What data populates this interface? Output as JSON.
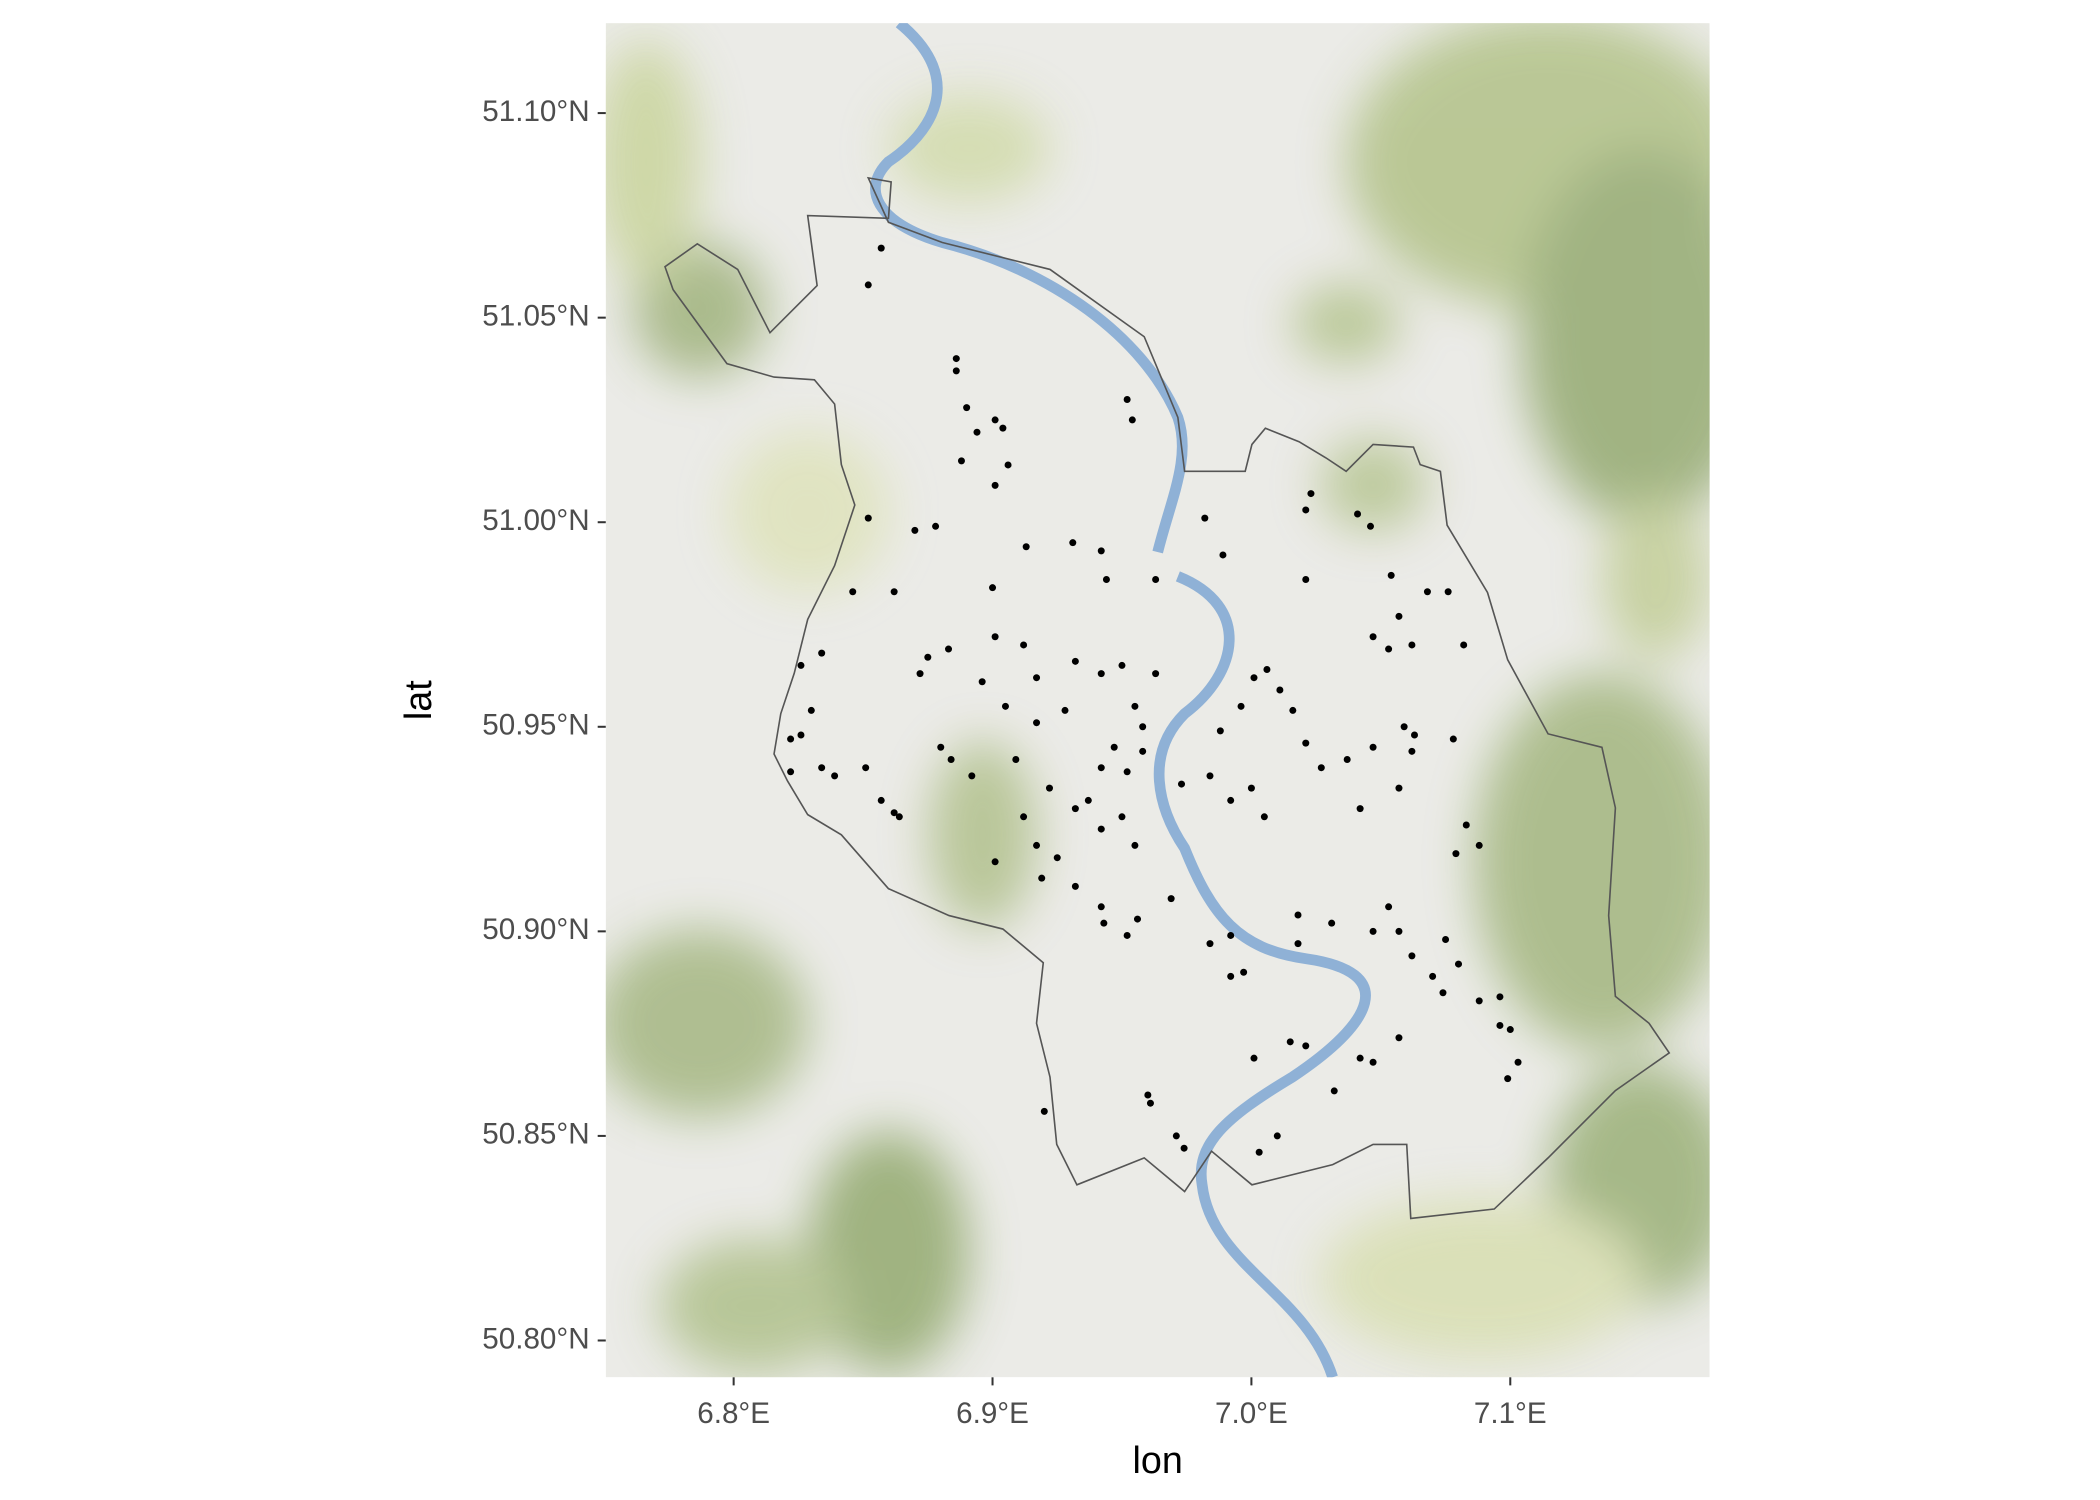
{
  "chart_data": {
    "type": "scatter",
    "x_label": "lon",
    "y_label": "lat",
    "color": "#000000",
    "xlim": [
      6.7506,
      7.177
    ],
    "ylim": [
      50.791,
      51.122
    ],
    "xticks": [
      {
        "value": 6.8,
        "label": "6.8°E"
      },
      {
        "value": 6.9,
        "label": "6.9°E"
      },
      {
        "value": 7.0,
        "label": "7.0°E"
      },
      {
        "value": 7.1,
        "label": "7.1°E"
      }
    ],
    "yticks": [
      {
        "value": 50.8,
        "label": "50.80°N"
      },
      {
        "value": 50.85,
        "label": "50.85°N"
      },
      {
        "value": 50.9,
        "label": "50.90°N"
      },
      {
        "value": 50.95,
        "label": "50.95°N"
      },
      {
        "value": 51.0,
        "label": "51.00°N"
      },
      {
        "value": 51.05,
        "label": "51.05°N"
      },
      {
        "value": 51.1,
        "label": "51.10°N"
      }
    ],
    "x": [
      6.857,
      6.852,
      6.886,
      6.886,
      6.89,
      6.901,
      6.894,
      6.904,
      6.888,
      6.906,
      6.901,
      6.952,
      6.954,
      6.852,
      6.87,
      6.878,
      6.982,
      6.989,
      7.023,
      7.021,
      7.041,
      7.046,
      6.913,
      6.931,
      6.942,
      6.944,
      6.963,
      6.9,
      6.846,
      6.862,
      7.021,
      7.054,
      7.068,
      7.076,
      7.082,
      7.062,
      7.057,
      6.826,
      6.834,
      6.822,
      6.826,
      6.83,
      6.822,
      6.834,
      6.839,
      6.851,
      6.857,
      6.862,
      6.864,
      6.872,
      6.875,
      6.883,
      6.88,
      6.884,
      6.892,
      6.896,
      6.901,
      6.912,
      6.917,
      6.905,
      6.917,
      6.928,
      6.909,
      6.922,
      6.932,
      6.937,
      6.942,
      6.95,
      6.955,
      6.912,
      6.917,
      6.925,
      6.901,
      6.919,
      6.932,
      6.942,
      6.943,
      6.956,
      6.952,
      6.969,
      6.932,
      6.942,
      6.95,
      6.963,
      6.955,
      6.958,
      6.947,
      6.942,
      6.952,
      6.958,
      6.973,
      6.984,
      6.992,
      7.0,
      7.005,
      6.988,
      6.996,
      7.001,
      7.006,
      7.011,
      7.016,
      7.021,
      7.027,
      7.037,
      7.042,
      7.047,
      7.053,
      7.047,
      7.057,
      7.083,
      7.088,
      7.079,
      7.078,
      6.984,
      6.992,
      6.992,
      6.997,
      7.018,
      7.018,
      7.031,
      7.047,
      7.053,
      7.057,
      7.062,
      7.075,
      7.07,
      7.08,
      7.074,
      7.088,
      7.096,
      7.096,
      7.1,
      7.103,
      7.099,
      7.057,
      7.042,
      7.047,
      7.021,
      7.015,
      7.001,
      7.032,
      7.01,
      7.003,
      6.96,
      6.961,
      6.92,
      6.971,
      6.974,
      7.059,
      7.062,
      7.063
    ],
    "y": [
      51.067,
      51.058,
      51.04,
      51.037,
      51.028,
      51.025,
      51.022,
      51.023,
      51.015,
      51.014,
      51.009,
      51.03,
      51.025,
      51.001,
      50.998,
      50.999,
      51.001,
      50.992,
      51.007,
      51.003,
      51.002,
      50.999,
      50.994,
      50.995,
      50.993,
      50.986,
      50.986,
      50.984,
      50.983,
      50.983,
      50.986,
      50.987,
      50.983,
      50.983,
      50.97,
      50.97,
      50.977,
      50.965,
      50.968,
      50.947,
      50.948,
      50.954,
      50.939,
      50.94,
      50.938,
      50.94,
      50.932,
      50.929,
      50.928,
      50.963,
      50.967,
      50.969,
      50.945,
      50.942,
      50.938,
      50.961,
      50.972,
      50.97,
      50.962,
      50.955,
      50.951,
      50.954,
      50.942,
      50.935,
      50.93,
      50.932,
      50.925,
      50.928,
      50.921,
      50.928,
      50.921,
      50.918,
      50.917,
      50.913,
      50.911,
      50.906,
      50.902,
      50.903,
      50.899,
      50.908,
      50.966,
      50.963,
      50.965,
      50.963,
      50.955,
      50.95,
      50.945,
      50.94,
      50.939,
      50.944,
      50.936,
      50.938,
      50.932,
      50.935,
      50.928,
      50.949,
      50.955,
      50.962,
      50.964,
      50.959,
      50.954,
      50.946,
      50.94,
      50.942,
      50.93,
      50.945,
      50.969,
      50.972,
      50.935,
      50.926,
      50.921,
      50.919,
      50.947,
      50.897,
      50.899,
      50.889,
      50.89,
      50.904,
      50.897,
      50.902,
      50.9,
      50.906,
      50.9,
      50.894,
      50.898,
      50.889,
      50.892,
      50.885,
      50.883,
      50.884,
      50.877,
      50.876,
      50.868,
      50.864,
      50.874,
      50.869,
      50.868,
      50.872,
      50.873,
      50.869,
      50.861,
      50.85,
      50.846,
      50.86,
      50.858,
      50.856,
      50.85,
      50.847,
      50.95,
      50.944,
      50.948
    ]
  }
}
